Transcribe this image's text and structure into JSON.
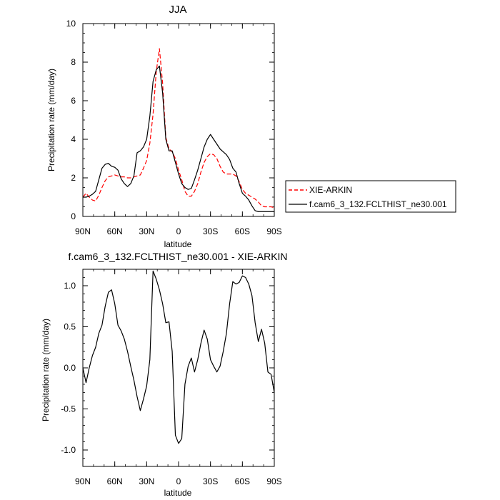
{
  "chart_data": [
    {
      "type": "line",
      "title": "JJA",
      "xlabel": "latitude",
      "ylabel": "Precipitation rate (mm/day)",
      "xlim": [
        90,
        -90
      ],
      "ylim": [
        0,
        10
      ],
      "x_ticks": [
        90,
        60,
        30,
        0,
        -30,
        -60,
        -90
      ],
      "x_tick_labels": [
        "90N",
        "60N",
        "30N",
        "0",
        "30S",
        "60S",
        "90S"
      ],
      "y_ticks": [
        0,
        2,
        4,
        6,
        8,
        10
      ],
      "y_tick_labels": [
        "0",
        "2",
        "4",
        "6",
        "8",
        "10"
      ],
      "legend_position": "outside-right",
      "series": [
        {
          "name": "XIE-ARKIN",
          "color": "#ff0000",
          "dash": "dashed",
          "x": [
            90,
            87,
            84,
            81,
            78,
            75,
            72,
            69,
            66,
            63,
            60,
            57,
            54,
            51,
            48,
            45,
            42,
            39,
            36,
            33,
            30,
            27,
            24,
            21,
            18,
            15,
            12,
            9,
            6,
            3,
            0,
            -3,
            -6,
            -9,
            -12,
            -15,
            -18,
            -21,
            -24,
            -27,
            -30,
            -33,
            -36,
            -39,
            -42,
            -45,
            -48,
            -51,
            -54,
            -57,
            -60,
            -63,
            -66,
            -69,
            -72,
            -75,
            -78,
            -81,
            -84,
            -87,
            -90
          ],
          "y": [
            1.0,
            1.2,
            1.0,
            0.85,
            0.8,
            1.1,
            1.5,
            1.85,
            2.05,
            2.1,
            2.15,
            2.1,
            2.05,
            2.05,
            2.0,
            2.0,
            2.05,
            2.1,
            2.15,
            2.5,
            2.9,
            3.8,
            5.3,
            7.5,
            8.7,
            6.9,
            4.1,
            3.5,
            3.35,
            3.0,
            2.4,
            1.9,
            1.3,
            1.05,
            1.05,
            1.3,
            1.7,
            2.3,
            2.8,
            3.1,
            3.25,
            3.2,
            3.0,
            2.6,
            2.3,
            2.2,
            2.2,
            2.2,
            2.1,
            1.8,
            1.4,
            1.2,
            1.1,
            1.0,
            0.9,
            0.75,
            0.55,
            0.5,
            0.5,
            0.5,
            0.45
          ]
        },
        {
          "name": "f.cam6_3_132.FCLTHIST_ne30.001",
          "color": "#000000",
          "dash": "solid",
          "x": [
            90,
            87,
            84,
            81,
            78,
            75,
            72,
            69,
            66,
            63,
            60,
            57,
            54,
            51,
            48,
            45,
            42,
            39,
            36,
            33,
            30,
            27,
            24,
            21,
            18,
            15,
            12,
            9,
            6,
            3,
            0,
            -3,
            -6,
            -9,
            -12,
            -15,
            -18,
            -21,
            -24,
            -27,
            -30,
            -33,
            -36,
            -39,
            -42,
            -45,
            -48,
            -51,
            -54,
            -57,
            -60,
            -63,
            -66,
            -69,
            -72,
            -75,
            -78,
            -81,
            -84,
            -87,
            -90
          ],
          "y": [
            1.0,
            1.0,
            1.05,
            1.15,
            1.3,
            1.9,
            2.5,
            2.7,
            2.75,
            2.6,
            2.55,
            2.4,
            1.95,
            1.7,
            1.55,
            1.7,
            2.1,
            3.3,
            3.4,
            3.6,
            4.0,
            5.2,
            7.0,
            7.6,
            7.8,
            6.4,
            4.0,
            3.4,
            3.4,
            2.8,
            2.2,
            1.7,
            1.5,
            1.4,
            1.45,
            1.9,
            2.4,
            3.0,
            3.6,
            4.0,
            4.25,
            4.0,
            3.75,
            3.5,
            3.35,
            3.2,
            2.95,
            2.5,
            2.3,
            1.7,
            1.2,
            1.05,
            0.85,
            0.55,
            0.3,
            0.25,
            0.25,
            0.25,
            0.25,
            0.25,
            0.25
          ]
        }
      ]
    },
    {
      "type": "line",
      "title": "f.cam6_3_132.FCLTHIST_ne30.001 - XIE-ARKIN",
      "xlabel": "latitude",
      "ylabel": "Precipitation rate (mm/day)",
      "xlim": [
        90,
        -90
      ],
      "ylim": [
        -1.2,
        1.2
      ],
      "x_ticks": [
        90,
        60,
        30,
        0,
        -30,
        -60,
        -90
      ],
      "x_tick_labels": [
        "90N",
        "60N",
        "30N",
        "0",
        "30S",
        "60S",
        "90S"
      ],
      "y_ticks": [
        -1.0,
        -0.5,
        0.0,
        0.5,
        1.0
      ],
      "y_tick_labels": [
        "-1.0",
        "-0.5",
        "0.0",
        "0.5",
        "1.0"
      ],
      "series": [
        {
          "color": "#000000",
          "dash": "solid",
          "x": [
            90,
            87,
            84,
            81,
            78,
            75,
            72,
            69,
            66,
            63,
            60,
            57,
            54,
            51,
            48,
            45,
            42,
            39,
            36,
            33,
            30,
            27,
            24,
            21,
            18,
            15,
            12,
            9,
            6,
            3,
            0,
            -3,
            -6,
            -9,
            -12,
            -15,
            -18,
            -21,
            -24,
            -27,
            -30,
            -33,
            -36,
            -39,
            -42,
            -45,
            -48,
            -51,
            -54,
            -57,
            -60,
            -63,
            -66,
            -69,
            -72,
            -75,
            -78,
            -81,
            -84,
            -87,
            -90
          ],
          "y": [
            0.0,
            -0.18,
            0.0,
            0.15,
            0.25,
            0.42,
            0.52,
            0.75,
            0.92,
            0.95,
            0.78,
            0.52,
            0.45,
            0.35,
            0.2,
            0.02,
            -0.15,
            -0.35,
            -0.52,
            -0.38,
            -0.22,
            0.1,
            1.18,
            1.08,
            0.95,
            0.78,
            0.55,
            0.56,
            0.2,
            -0.82,
            -0.92,
            -0.86,
            -0.2,
            0.02,
            0.12,
            -0.05,
            0.1,
            0.3,
            0.46,
            0.35,
            0.1,
            0.02,
            -0.05,
            0.02,
            0.2,
            0.42,
            0.78,
            1.05,
            1.02,
            1.04,
            1.12,
            1.1,
            1.02,
            0.88,
            0.55,
            0.32,
            0.47,
            0.3,
            -0.05,
            -0.08,
            -0.3
          ]
        }
      ]
    }
  ]
}
